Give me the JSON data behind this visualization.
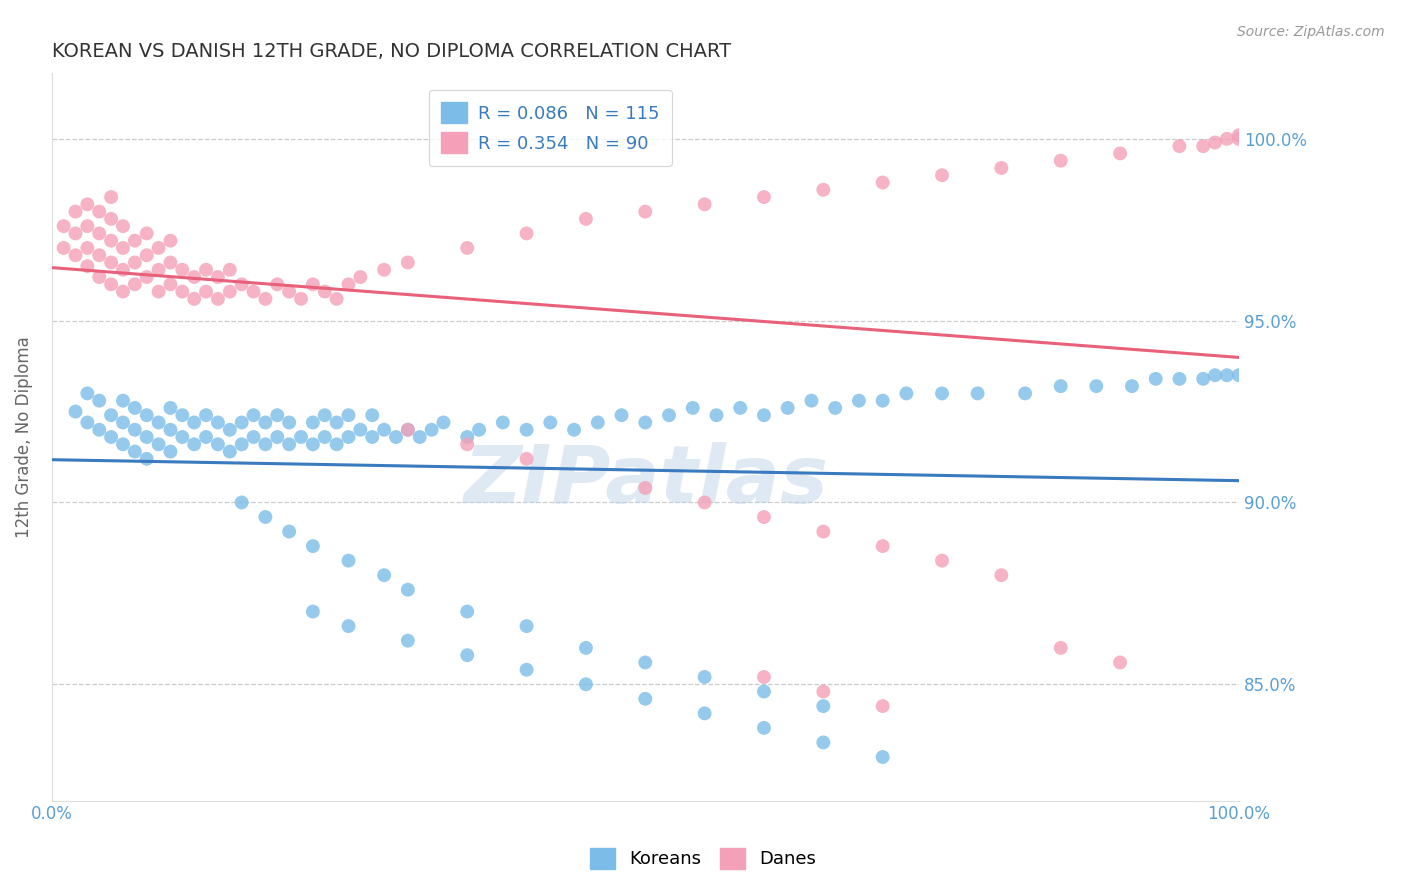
{
  "title": "KOREAN VS DANISH 12TH GRADE, NO DIPLOMA CORRELATION CHART",
  "source_text": "Source: ZipAtlas.com",
  "ylabel": "12th Grade, No Diploma",
  "x_min": 0.0,
  "x_max": 1.0,
  "y_min": 0.818,
  "y_max": 1.018,
  "yticks": [
    0.85,
    0.9,
    0.95,
    1.0
  ],
  "ytick_labels": [
    "85.0%",
    "90.0%",
    "95.0%",
    "100.0%"
  ],
  "blue_R": 0.086,
  "blue_N": 115,
  "pink_R": 0.354,
  "pink_N": 90,
  "blue_color": "#7bbde8",
  "pink_color": "#f4a0b8",
  "blue_line_color": "#3a7abf",
  "pink_line_color": "#e8607a",
  "legend_blue_label": "Koreans",
  "legend_pink_label": "Danes",
  "watermark": "ZIPatlas",
  "background_color": "#ffffff",
  "grid_color": "#cccccc",
  "title_color": "#333333",
  "axis_label_color": "#5a9fd4",
  "blue_scatter_x": [
    0.02,
    0.03,
    0.03,
    0.04,
    0.04,
    0.05,
    0.05,
    0.06,
    0.06,
    0.06,
    0.07,
    0.07,
    0.07,
    0.08,
    0.08,
    0.08,
    0.09,
    0.09,
    0.1,
    0.1,
    0.1,
    0.11,
    0.11,
    0.12,
    0.12,
    0.13,
    0.13,
    0.14,
    0.14,
    0.15,
    0.15,
    0.16,
    0.16,
    0.17,
    0.17,
    0.18,
    0.18,
    0.19,
    0.19,
    0.2,
    0.2,
    0.21,
    0.22,
    0.22,
    0.23,
    0.23,
    0.24,
    0.24,
    0.25,
    0.25,
    0.26,
    0.27,
    0.27,
    0.28,
    0.29,
    0.3,
    0.31,
    0.32,
    0.33,
    0.35,
    0.36,
    0.38,
    0.4,
    0.42,
    0.44,
    0.46,
    0.48,
    0.5,
    0.52,
    0.54,
    0.56,
    0.58,
    0.6,
    0.62,
    0.64,
    0.66,
    0.68,
    0.7,
    0.72,
    0.75,
    0.78,
    0.82,
    0.85,
    0.88,
    0.91,
    0.93,
    0.95,
    0.97,
    0.98,
    0.99,
    1.0,
    0.16,
    0.18,
    0.2,
    0.22,
    0.25,
    0.28,
    0.3,
    0.35,
    0.4,
    0.45,
    0.5,
    0.55,
    0.6,
    0.65,
    0.22,
    0.25,
    0.3,
    0.35,
    0.4,
    0.45,
    0.5,
    0.55,
    0.6,
    0.65,
    0.7
  ],
  "blue_scatter_y": [
    0.925,
    0.922,
    0.93,
    0.92,
    0.928,
    0.918,
    0.924,
    0.916,
    0.922,
    0.928,
    0.914,
    0.92,
    0.926,
    0.912,
    0.918,
    0.924,
    0.916,
    0.922,
    0.914,
    0.92,
    0.926,
    0.918,
    0.924,
    0.916,
    0.922,
    0.918,
    0.924,
    0.916,
    0.922,
    0.914,
    0.92,
    0.916,
    0.922,
    0.918,
    0.924,
    0.916,
    0.922,
    0.918,
    0.924,
    0.916,
    0.922,
    0.918,
    0.916,
    0.922,
    0.918,
    0.924,
    0.916,
    0.922,
    0.918,
    0.924,
    0.92,
    0.918,
    0.924,
    0.92,
    0.918,
    0.92,
    0.918,
    0.92,
    0.922,
    0.918,
    0.92,
    0.922,
    0.92,
    0.922,
    0.92,
    0.922,
    0.924,
    0.922,
    0.924,
    0.926,
    0.924,
    0.926,
    0.924,
    0.926,
    0.928,
    0.926,
    0.928,
    0.928,
    0.93,
    0.93,
    0.93,
    0.93,
    0.932,
    0.932,
    0.932,
    0.934,
    0.934,
    0.934,
    0.935,
    0.935,
    0.935,
    0.9,
    0.896,
    0.892,
    0.888,
    0.884,
    0.88,
    0.876,
    0.87,
    0.866,
    0.86,
    0.856,
    0.852,
    0.848,
    0.844,
    0.87,
    0.866,
    0.862,
    0.858,
    0.854,
    0.85,
    0.846,
    0.842,
    0.838,
    0.834,
    0.83
  ],
  "pink_scatter_x": [
    0.01,
    0.01,
    0.02,
    0.02,
    0.02,
    0.03,
    0.03,
    0.03,
    0.03,
    0.04,
    0.04,
    0.04,
    0.04,
    0.05,
    0.05,
    0.05,
    0.05,
    0.05,
    0.06,
    0.06,
    0.06,
    0.06,
    0.07,
    0.07,
    0.07,
    0.08,
    0.08,
    0.08,
    0.09,
    0.09,
    0.09,
    0.1,
    0.1,
    0.1,
    0.11,
    0.11,
    0.12,
    0.12,
    0.13,
    0.13,
    0.14,
    0.14,
    0.15,
    0.15,
    0.16,
    0.17,
    0.18,
    0.19,
    0.2,
    0.21,
    0.22,
    0.23,
    0.24,
    0.25,
    0.26,
    0.28,
    0.3,
    0.35,
    0.4,
    0.45,
    0.5,
    0.55,
    0.6,
    0.65,
    0.7,
    0.75,
    0.8,
    0.85,
    0.9,
    0.95,
    1.0,
    0.97,
    0.98,
    0.99,
    1.0,
    0.3,
    0.35,
    0.4,
    0.5,
    0.55,
    0.6,
    0.65,
    0.7,
    0.75,
    0.8,
    0.85,
    0.9,
    0.6,
    0.65,
    0.7
  ],
  "pink_scatter_y": [
    0.97,
    0.976,
    0.968,
    0.974,
    0.98,
    0.965,
    0.97,
    0.976,
    0.982,
    0.962,
    0.968,
    0.974,
    0.98,
    0.96,
    0.966,
    0.972,
    0.978,
    0.984,
    0.958,
    0.964,
    0.97,
    0.976,
    0.96,
    0.966,
    0.972,
    0.962,
    0.968,
    0.974,
    0.958,
    0.964,
    0.97,
    0.96,
    0.966,
    0.972,
    0.958,
    0.964,
    0.956,
    0.962,
    0.958,
    0.964,
    0.956,
    0.962,
    0.958,
    0.964,
    0.96,
    0.958,
    0.956,
    0.96,
    0.958,
    0.956,
    0.96,
    0.958,
    0.956,
    0.96,
    0.962,
    0.964,
    0.966,
    0.97,
    0.974,
    0.978,
    0.98,
    0.982,
    0.984,
    0.986,
    0.988,
    0.99,
    0.992,
    0.994,
    0.996,
    0.998,
    1.0,
    0.998,
    0.999,
    1.0,
    1.001,
    0.92,
    0.916,
    0.912,
    0.904,
    0.9,
    0.896,
    0.892,
    0.888,
    0.884,
    0.88,
    0.86,
    0.856,
    0.852,
    0.848,
    0.844
  ]
}
